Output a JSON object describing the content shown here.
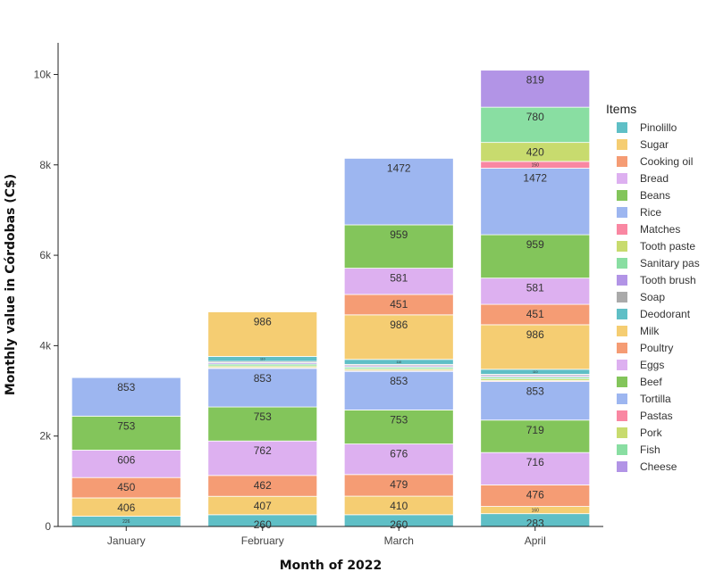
{
  "chart_data": {
    "type": "bar",
    "stacked": true,
    "title": "",
    "xlabel": "Month of 2022",
    "ylabel": "Monthly value in Córdobas (C$)",
    "categories": [
      "January",
      "February",
      "March",
      "April"
    ],
    "ylim": [
      0,
      10700
    ],
    "yticks": [
      0,
      2000,
      4000,
      6000,
      8000,
      10000
    ],
    "ytick_labels": [
      "0",
      "2k",
      "4k",
      "6k",
      "8k",
      "10k"
    ],
    "grid": false,
    "legend": {
      "title": "Items",
      "position": "right"
    },
    "series": [
      {
        "name": "Pinolillo",
        "color": "#5FBFC6",
        "values": [
          226,
          260,
          260,
          283
        ]
      },
      {
        "name": "Sugar",
        "color": "#F5CD72",
        "values": [
          406,
          407,
          410,
          160
        ]
      },
      {
        "name": "Cooking oil",
        "color": "#F59C74",
        "values": [
          450,
          462,
          479,
          476
        ]
      },
      {
        "name": "Bread",
        "color": "#DDB0F0",
        "values": [
          606,
          762,
          676,
          716
        ]
      },
      {
        "name": "Beans",
        "color": "#83C55B",
        "values": [
          753,
          753,
          753,
          719
        ]
      },
      {
        "name": "Rice",
        "color": "#9DB6F0",
        "values": [
          853,
          853,
          853,
          853
        ]
      },
      {
        "name": "Matches",
        "color": "#F987A2",
        "values": [
          0,
          20,
          20,
          20
        ]
      },
      {
        "name": "Tooth paste",
        "color": "#C8DB6E",
        "values": [
          0,
          35,
          35,
          40
        ]
      },
      {
        "name": "Sanitary pas",
        "color": "#89DEA2",
        "values": [
          0,
          40,
          40,
          40
        ]
      },
      {
        "name": "Tooth brush",
        "color": "#B294E6",
        "values": [
          0,
          30,
          30,
          30
        ]
      },
      {
        "name": "Soap",
        "color": "#AAAAAA",
        "values": [
          0,
          30,
          30,
          30
        ]
      },
      {
        "name": "Deodorant",
        "color": "#5FBFC6",
        "values": [
          0,
          110,
          110,
          110
        ]
      },
      {
        "name": "Milk",
        "color": "#F5CD72",
        "values": [
          0,
          986,
          986,
          986
        ]
      },
      {
        "name": "Poultry",
        "color": "#F59C74",
        "values": [
          0,
          0,
          451,
          451
        ]
      },
      {
        "name": "Eggs",
        "color": "#DDB0F0",
        "values": [
          0,
          0,
          581,
          581
        ]
      },
      {
        "name": "Beef",
        "color": "#83C55B",
        "values": [
          0,
          0,
          959,
          959
        ]
      },
      {
        "name": "Tortilla",
        "color": "#9DB6F0",
        "values": [
          0,
          0,
          1472,
          1472
        ]
      },
      {
        "name": "Pastas",
        "color": "#F987A2",
        "values": [
          0,
          0,
          0,
          150
        ]
      },
      {
        "name": "Pork",
        "color": "#C8DB6E",
        "values": [
          0,
          0,
          0,
          420
        ]
      },
      {
        "name": "Fish",
        "color": "#89DEA2",
        "values": [
          0,
          0,
          0,
          780
        ]
      },
      {
        "name": "Cheese",
        "color": "#B294E6",
        "values": [
          0,
          0,
          0,
          819
        ]
      }
    ],
    "value_labels": {
      "large_threshold": 250,
      "small_threshold": 60
    }
  }
}
